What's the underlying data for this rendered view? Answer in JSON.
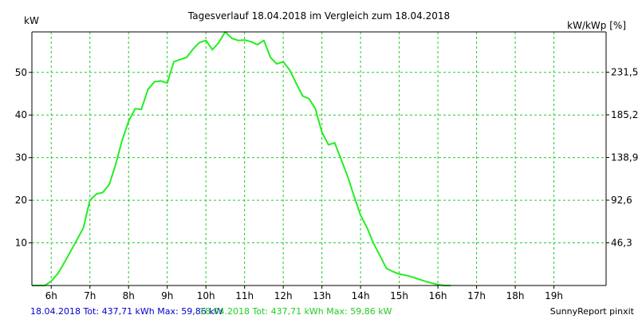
{
  "chart_data": {
    "type": "line",
    "title": "Tagesverlauf 18.04.2018 im Vergleich zum 18.04.2018",
    "ylabel_left": "kW",
    "ylabel_right": "kW/kWp [%]",
    "ylim_left": [
      0,
      59.5
    ],
    "ylim_right": [
      0,
      275.2
    ],
    "xlim": [
      5.5,
      20.35
    ],
    "y_ticks_left": [
      {
        "value": 10,
        "label": "10"
      },
      {
        "value": 20,
        "label": "20"
      },
      {
        "value": 30,
        "label": "30"
      },
      {
        "value": 40,
        "label": "40"
      },
      {
        "value": 50,
        "label": "50"
      }
    ],
    "y_ticks_right": [
      {
        "value": 46.3,
        "label": "46,3"
      },
      {
        "value": 92.6,
        "label": "92,6"
      },
      {
        "value": 138.9,
        "label": "138,9"
      },
      {
        "value": 185.2,
        "label": "185,2"
      },
      {
        "value": 231.5,
        "label": "231,5"
      }
    ],
    "x_ticks": [
      {
        "value": 6,
        "label": "6h"
      },
      {
        "value": 7,
        "label": "7h"
      },
      {
        "value": 8,
        "label": "8h"
      },
      {
        "value": 9,
        "label": "9h"
      },
      {
        "value": 10,
        "label": "10h"
      },
      {
        "value": 11,
        "label": "11h"
      },
      {
        "value": 12,
        "label": "12h"
      },
      {
        "value": 13,
        "label": "13h"
      },
      {
        "value": 14,
        "label": "14h"
      },
      {
        "value": 15,
        "label": "15h"
      },
      {
        "value": 16,
        "label": "16h"
      },
      {
        "value": 17,
        "label": "17h"
      },
      {
        "value": 18,
        "label": "18h"
      },
      {
        "value": 19,
        "label": "19h"
      }
    ],
    "grid": true,
    "series": [
      {
        "name": "18.04.2018 Tot: 437,71 kWh Max: 59,86 kW",
        "color": "#22ee22",
        "points": [
          [
            5.5,
            0
          ],
          [
            5.83,
            0
          ],
          [
            6.0,
            1.0
          ],
          [
            6.17,
            2.8
          ],
          [
            6.33,
            5.2
          ],
          [
            6.5,
            8.0
          ],
          [
            6.67,
            10.8
          ],
          [
            6.83,
            13.5
          ],
          [
            7.0,
            20.0
          ],
          [
            7.17,
            21.5
          ],
          [
            7.33,
            21.8
          ],
          [
            7.5,
            23.7
          ],
          [
            7.67,
            28.5
          ],
          [
            7.83,
            34.0
          ],
          [
            8.0,
            38.5
          ],
          [
            8.17,
            41.5
          ],
          [
            8.33,
            41.3
          ],
          [
            8.5,
            46.0
          ],
          [
            8.67,
            47.8
          ],
          [
            8.83,
            48.0
          ],
          [
            9.0,
            47.5
          ],
          [
            9.17,
            52.5
          ],
          [
            9.33,
            53.0
          ],
          [
            9.5,
            53.5
          ],
          [
            9.67,
            55.5
          ],
          [
            9.83,
            57.0
          ],
          [
            10.0,
            57.5
          ],
          [
            10.17,
            55.3
          ],
          [
            10.33,
            57.0
          ],
          [
            10.5,
            59.5
          ],
          [
            10.67,
            58.0
          ],
          [
            10.83,
            57.5
          ],
          [
            11.0,
            57.6
          ],
          [
            11.17,
            57.2
          ],
          [
            11.33,
            56.5
          ],
          [
            11.5,
            57.5
          ],
          [
            11.67,
            53.5
          ],
          [
            11.83,
            52.0
          ],
          [
            12.0,
            52.5
          ],
          [
            12.17,
            50.5
          ],
          [
            12.33,
            47.5
          ],
          [
            12.5,
            44.5
          ],
          [
            12.67,
            43.8
          ],
          [
            12.83,
            41.5
          ],
          [
            13.0,
            36.0
          ],
          [
            13.17,
            33.0
          ],
          [
            13.33,
            33.5
          ],
          [
            13.5,
            29.5
          ],
          [
            13.67,
            25.5
          ],
          [
            13.83,
            21.0
          ],
          [
            14.0,
            16.5
          ],
          [
            14.17,
            13.5
          ],
          [
            14.33,
            10.0
          ],
          [
            14.5,
            7.0
          ],
          [
            14.67,
            4.0
          ],
          [
            14.83,
            3.3
          ],
          [
            15.0,
            2.7
          ],
          [
            15.17,
            2.4
          ],
          [
            15.33,
            2.0
          ],
          [
            15.5,
            1.5
          ],
          [
            15.67,
            1.0
          ],
          [
            15.83,
            0.6
          ],
          [
            16.0,
            0.2
          ],
          [
            16.17,
            0
          ],
          [
            16.33,
            0
          ]
        ]
      }
    ],
    "legend": [
      {
        "text": "18.04.2018 Tot: 437,71 kWh Max: 59,86 kW",
        "color": "#0000cc"
      },
      {
        "text": "18.04.2018 Tot: 437,71 kWh Max: 59,86 kW",
        "color": "#22cc22"
      }
    ],
    "credit": "SunnyReport pinxit"
  }
}
